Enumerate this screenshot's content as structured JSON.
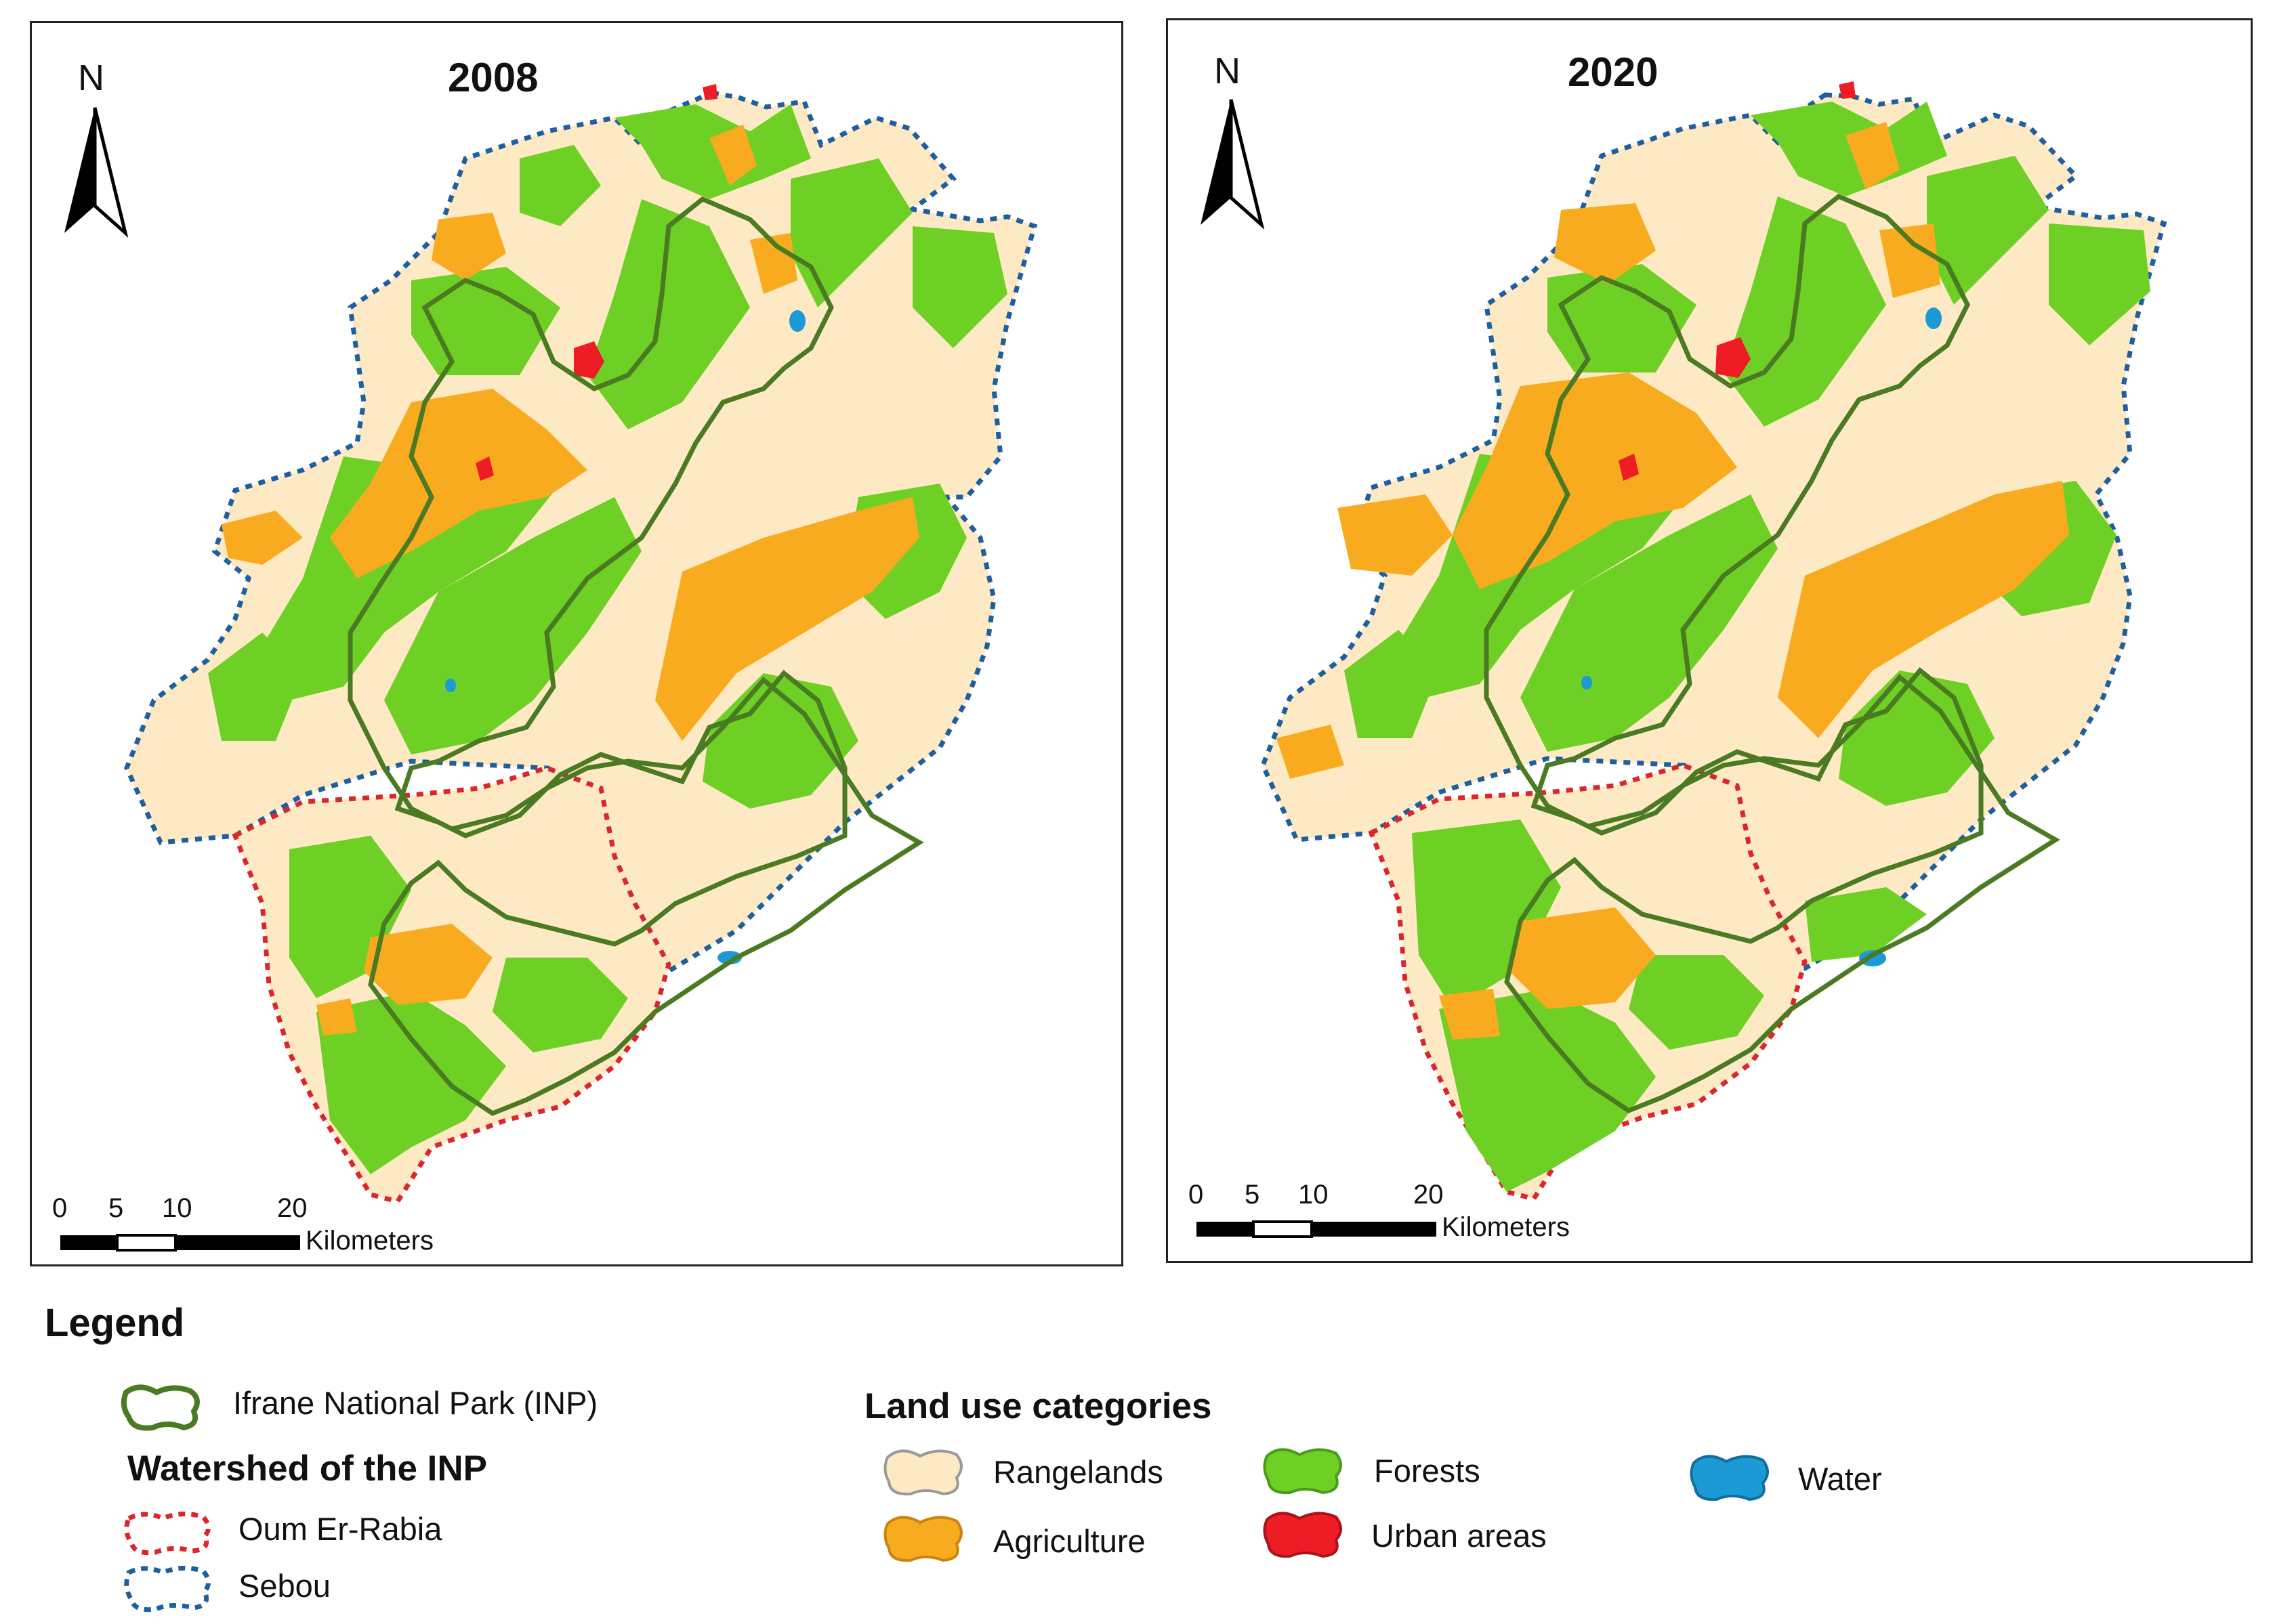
{
  "maps": [
    {
      "year": "2008",
      "north": "N",
      "scale_ticks": [
        "0",
        "5",
        "10",
        "20"
      ],
      "scale_unit": "Kilometers"
    },
    {
      "year": "2020",
      "north": "N",
      "scale_ticks": [
        "0",
        "5",
        "10",
        "20"
      ],
      "scale_unit": "Kilometers"
    }
  ],
  "legend": {
    "title": "Legend",
    "park": "Ifrane National Park (INP)",
    "watershed_heading": "Watershed of the INP",
    "watersheds": [
      "Oum Er-Rabia",
      "Sebou"
    ],
    "landuse_heading": "Land use categories",
    "categories": {
      "rangelands": "Rangelands",
      "agriculture": "Agriculture",
      "forests": "Forests",
      "urban": "Urban areas",
      "water": "Water"
    }
  },
  "colors": {
    "rangelands": "#fde9c3",
    "agriculture": "#f8ab1e",
    "forests": "#6ecf25",
    "urban": "#ee1c24",
    "water": "#1b9ad6",
    "park_outline": "#4a7a22",
    "oum_er_rabia": "#d8282d",
    "sebou": "#1f5f9e"
  }
}
